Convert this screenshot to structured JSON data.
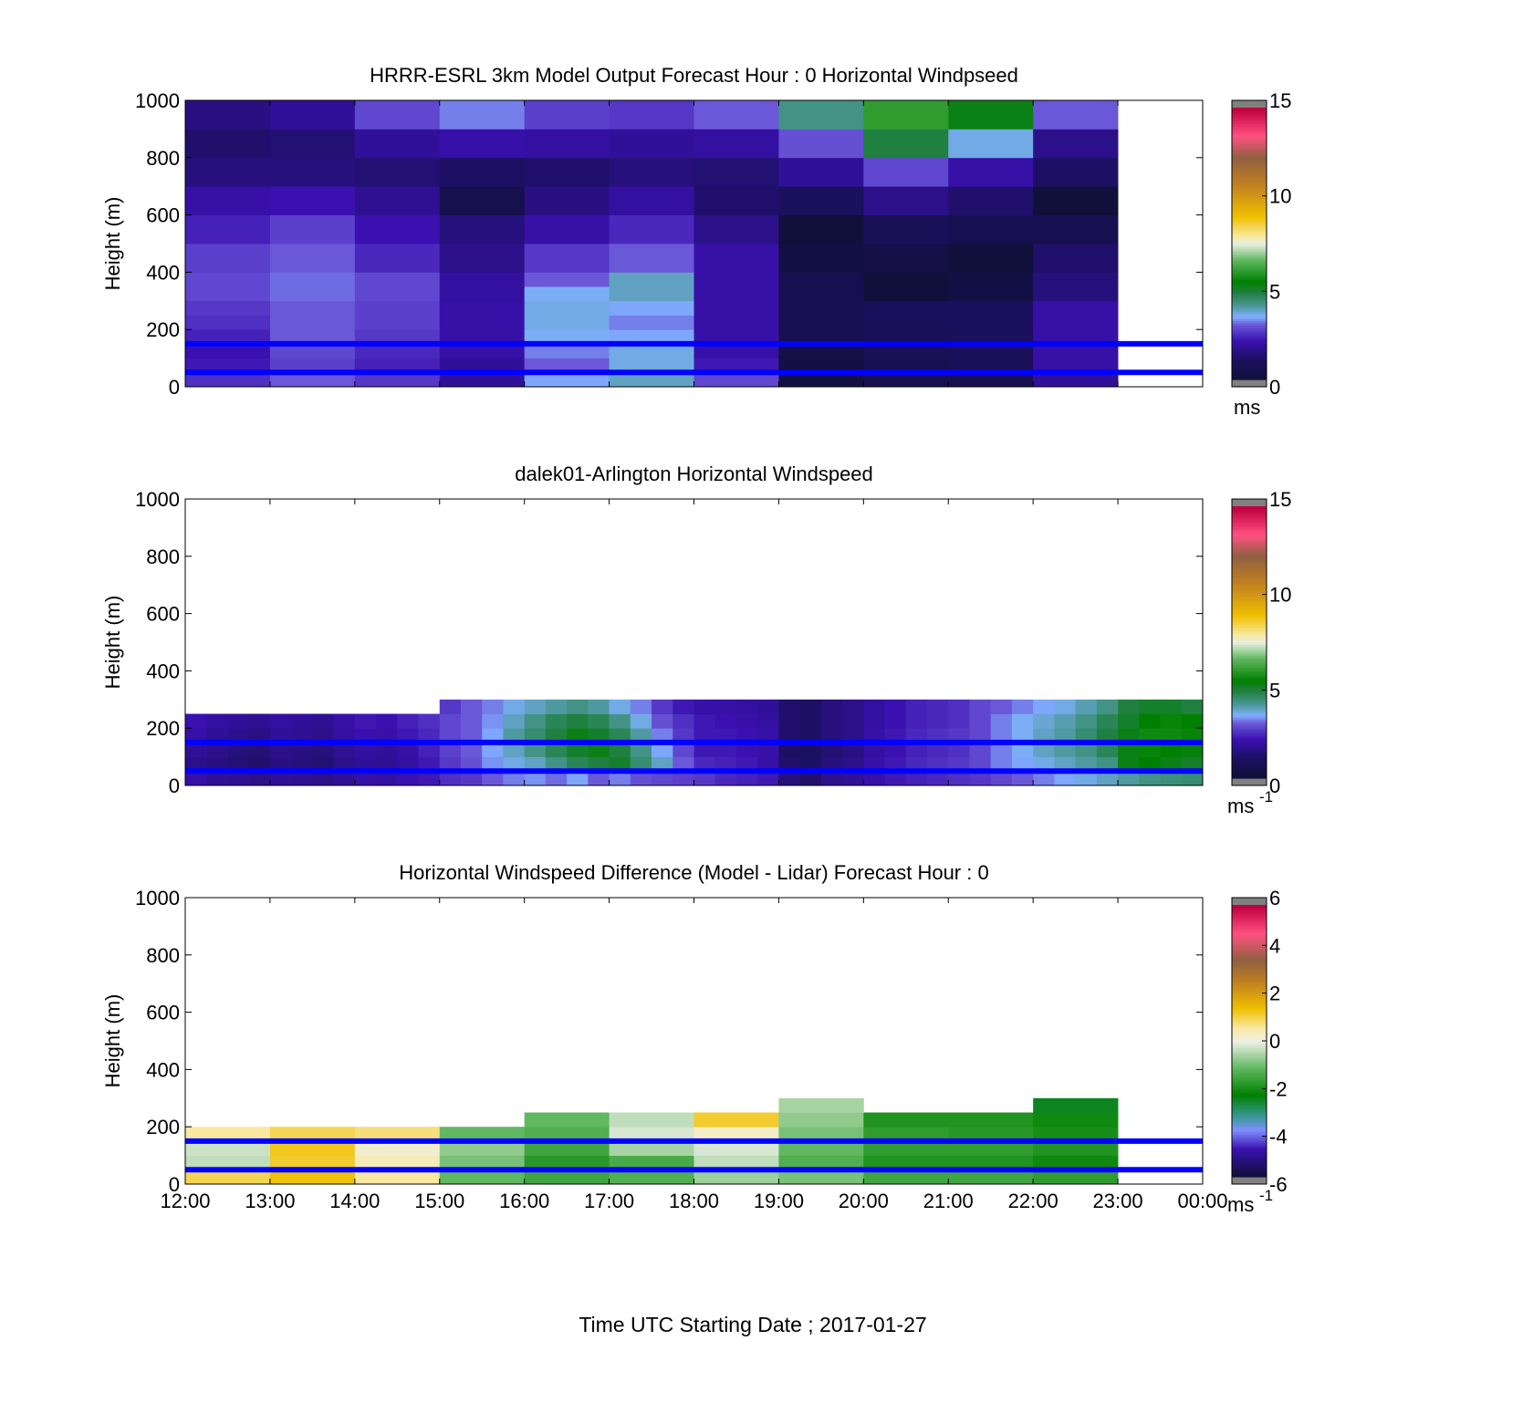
{
  "figure": {
    "x_tick_labels": [
      "12:00",
      "13:00",
      "14:00",
      "15:00",
      "16:00",
      "17:00",
      "18:00",
      "19:00",
      "20:00",
      "21:00",
      "22:00",
      "23:00",
      "00:00"
    ],
    "x_axis_label": "Time UTC  Starting Date ; 2017-01-27",
    "y_tick_labels": [
      "0",
      "200",
      "400",
      "600",
      "800",
      "1000"
    ],
    "reference_lines": {
      "heights_m": [
        50,
        150
      ],
      "color": "#0000ff"
    }
  },
  "chart_data": [
    {
      "type": "heatmap",
      "id": "model",
      "title": "HRRR-ESRL 3km Model Output   Forecast Hour : 0 Horizontal Windpseed",
      "ylabel": "Height (m)",
      "units_label": "ms",
      "units_superscript": "",
      "xlim": [
        12,
        24
      ],
      "ylim": [
        0,
        1000
      ],
      "colorbar": {
        "range": [
          0,
          15
        ],
        "ticks": [
          0,
          5,
          10,
          15
        ]
      },
      "columns_start_hour": [
        12,
        13,
        14,
        15,
        16,
        17,
        18,
        19,
        20,
        21,
        22
      ],
      "column_width_hours": 1,
      "heights_m": [
        25,
        75,
        125,
        175,
        225,
        275,
        325,
        375,
        450,
        550,
        650,
        750,
        850,
        950
      ],
      "row_height_m": [
        50,
        50,
        50,
        50,
        50,
        50,
        50,
        50,
        100,
        100,
        100,
        100,
        100,
        100
      ],
      "values": [
        [
          2.5,
          3.0,
          2.6,
          1.8,
          3.4,
          3.8,
          2.8,
          0.3,
          0.6,
          0.7,
          1.8
        ],
        [
          2.2,
          2.7,
          2.3,
          1.8,
          3.0,
          3.6,
          2.2,
          0.3,
          0.7,
          0.8,
          2.0
        ],
        [
          2.1,
          2.8,
          2.4,
          2.0,
          3.2,
          3.6,
          2.0,
          0.4,
          0.8,
          0.9,
          2.0
        ],
        [
          2.3,
          3.0,
          2.6,
          2.0,
          3.5,
          3.4,
          2.0,
          0.6,
          0.8,
          0.9,
          2.0
        ],
        [
          2.5,
          3.0,
          2.7,
          2.0,
          3.6,
          3.2,
          2.0,
          0.6,
          0.9,
          1.0,
          2.0
        ],
        [
          2.6,
          3.0,
          2.7,
          2.0,
          3.6,
          3.4,
          2.0,
          0.6,
          0.9,
          1.0,
          2.0
        ],
        [
          2.8,
          3.1,
          2.8,
          1.9,
          3.5,
          3.8,
          2.0,
          0.6,
          0.0,
          0.3,
          1.4
        ],
        [
          2.8,
          3.1,
          2.8,
          1.9,
          3.0,
          3.8,
          2.0,
          0.6,
          0.0,
          0.3,
          1.4
        ],
        [
          2.7,
          3.0,
          2.4,
          1.6,
          2.6,
          3.0,
          2.0,
          0.3,
          0.4,
          0.0,
          1.2
        ],
        [
          2.3,
          2.7,
          2.1,
          1.4,
          2.0,
          2.4,
          1.6,
          0.0,
          0.8,
          0.6,
          0.6
        ],
        [
          2.0,
          2.1,
          1.7,
          0.5,
          1.5,
          1.9,
          1.2,
          0.9,
          1.6,
          1.2,
          0.0
        ],
        [
          1.4,
          1.4,
          1.3,
          1.1,
          1.2,
          1.4,
          1.3,
          1.8,
          2.8,
          2.0,
          1.1
        ],
        [
          1.2,
          1.3,
          1.8,
          2.0,
          1.9,
          1.8,
          1.9,
          2.9,
          4.8,
          3.6,
          1.6
        ],
        [
          1.5,
          1.8,
          2.8,
          3.2,
          2.7,
          2.6,
          3.0,
          4.2,
          6.0,
          5.2,
          3.0
        ]
      ]
    },
    {
      "type": "heatmap",
      "id": "lidar",
      "title": "dalek01-Arlington  Horizontal Windspeed",
      "ylabel": "Height (m)",
      "units_label": "ms",
      "units_superscript": "-1",
      "xlim": [
        12,
        24
      ],
      "ylim": [
        0,
        1000
      ],
      "colorbar": {
        "range": [
          0,
          15
        ],
        "ticks": [
          0,
          5,
          10,
          15
        ]
      },
      "columns_start_hour": [
        12,
        12.25,
        12.5,
        12.75,
        13,
        13.25,
        13.5,
        13.75,
        14,
        14.25,
        14.5,
        14.75,
        15,
        15.25,
        15.5,
        15.75,
        16,
        16.25,
        16.5,
        16.75,
        17,
        17.25,
        17.5,
        17.75,
        18,
        18.25,
        18.5,
        18.75,
        19,
        19.25,
        19.5,
        19.75,
        20,
        20.25,
        20.5,
        20.75,
        21,
        21.25,
        21.5,
        21.75,
        22,
        22.25,
        22.5,
        22.75,
        23,
        23.25,
        23.5,
        23.75
      ],
      "column_width_hours": 0.25,
      "heights_m": [
        25,
        75,
        125,
        175,
        225,
        275
      ],
      "row_height_m": [
        50,
        50,
        50,
        50,
        50,
        50
      ],
      "values": [
        [
          2.0,
          1.8,
          1.7,
          1.6,
          1.8,
          1.7,
          1.6,
          1.8,
          2.0,
          1.9,
          2.1,
          2.2,
          2.5,
          2.6,
          3.0,
          3.2,
          3.3,
          3.1,
          3.4,
          3.0,
          3.2,
          2.9,
          2.8,
          2.7,
          2.6,
          2.4,
          2.3,
          2.2,
          1.4,
          1.2,
          1.6,
          1.8,
          2.0,
          2.2,
          2.3,
          2.4,
          2.5,
          2.6,
          2.8,
          3.0,
          3.2,
          3.4,
          3.6,
          3.8,
          4.0,
          4.2,
          4.3,
          4.4
        ],
        [
          1.6,
          1.5,
          1.3,
          1.2,
          1.5,
          1.4,
          1.3,
          1.6,
          1.8,
          1.7,
          1.9,
          2.2,
          2.6,
          2.9,
          3.3,
          3.6,
          3.8,
          4.2,
          4.6,
          4.8,
          5.0,
          4.4,
          3.8,
          3.0,
          2.4,
          2.3,
          2.2,
          2.0,
          1.2,
          1.1,
          1.4,
          1.6,
          2.0,
          2.2,
          2.4,
          2.5,
          2.6,
          2.8,
          3.2,
          3.4,
          3.6,
          3.8,
          4.0,
          4.2,
          5.2,
          5.4,
          5.2,
          5.0
        ],
        [
          1.8,
          1.6,
          1.4,
          1.3,
          1.6,
          1.5,
          1.4,
          1.7,
          1.9,
          1.8,
          2.0,
          2.3,
          2.7,
          3.0,
          3.4,
          3.8,
          4.2,
          4.6,
          5.0,
          5.2,
          4.8,
          4.2,
          3.4,
          2.8,
          2.2,
          2.2,
          2.1,
          2.0,
          1.1,
          1.0,
          1.3,
          1.5,
          1.9,
          2.1,
          2.3,
          2.4,
          2.5,
          2.8,
          3.2,
          3.5,
          3.8,
          4.0,
          4.2,
          4.6,
          5.2,
          5.5,
          5.4,
          5.3
        ],
        [
          2.0,
          1.8,
          1.6,
          1.5,
          1.8,
          1.7,
          1.6,
          1.9,
          2.1,
          2.0,
          2.2,
          2.4,
          2.8,
          3.0,
          3.4,
          4.0,
          4.4,
          4.8,
          5.2,
          5.0,
          4.6,
          4.0,
          3.2,
          2.6,
          2.2,
          2.2,
          2.1,
          2.0,
          1.2,
          1.1,
          1.4,
          1.6,
          2.0,
          2.2,
          2.4,
          2.5,
          2.6,
          2.8,
          3.2,
          3.5,
          3.8,
          4.0,
          4.4,
          4.8,
          5.2,
          5.6,
          5.6,
          5.5
        ],
        [
          2.1,
          1.9,
          1.8,
          1.7,
          1.9,
          1.8,
          1.7,
          2.0,
          2.2,
          2.1,
          2.3,
          2.5,
          2.8,
          3.0,
          3.3,
          3.8,
          4.2,
          4.6,
          4.8,
          4.6,
          4.2,
          3.6,
          2.9,
          2.5,
          2.2,
          2.1,
          2.0,
          1.9,
          1.2,
          1.1,
          1.4,
          1.6,
          1.9,
          2.1,
          2.3,
          2.4,
          2.5,
          2.8,
          3.2,
          3.5,
          3.7,
          3.9,
          4.2,
          4.6,
          5.0,
          5.4,
          5.5,
          5.4
        ],
        [
          null,
          null,
          null,
          null,
          null,
          null,
          null,
          null,
          null,
          null,
          null,
          null,
          2.6,
          3.0,
          3.2,
          3.6,
          3.8,
          4.0,
          4.2,
          4.0,
          3.6,
          3.2,
          2.6,
          2.2,
          2.0,
          2.0,
          1.9,
          1.8,
          1.2,
          1.1,
          1.4,
          1.6,
          1.9,
          2.1,
          2.3,
          2.4,
          2.5,
          2.8,
          3.0,
          3.2,
          3.4,
          3.6,
          3.9,
          4.2,
          4.8,
          5.0,
          5.0,
          4.8
        ]
      ]
    },
    {
      "type": "heatmap",
      "id": "difference",
      "title": "Horizontal Windspeed Difference (Model - Lidar) Forecast Hour : 0",
      "ylabel": "Height (m)",
      "units_label": "ms",
      "units_superscript": "-1",
      "xlim": [
        12,
        24
      ],
      "ylim": [
        0,
        1000
      ],
      "colorbar": {
        "range": [
          -6,
          6
        ],
        "ticks": [
          -6,
          -4,
          -2,
          0,
          2,
          4,
          6
        ]
      },
      "columns_start_hour": [
        12,
        13,
        14,
        15,
        16,
        17,
        18,
        19,
        20,
        21,
        22
      ],
      "column_width_hours": 1,
      "heights_m": [
        25,
        75,
        125,
        175,
        225,
        275
      ],
      "row_height_m": [
        50,
        50,
        50,
        50,
        50,
        50
      ],
      "values": [
        [
          1.0,
          1.4,
          0.6,
          -1.2,
          -1.6,
          -1.4,
          -0.7,
          -1.0,
          -1.6,
          -1.6,
          -1.8
        ],
        [
          -0.4,
          1.2,
          0.4,
          -1.0,
          -1.9,
          -1.5,
          -0.4,
          -1.4,
          -2.0,
          -2.0,
          -2.2
        ],
        [
          -0.3,
          1.3,
          0.2,
          -0.8,
          -1.6,
          -0.6,
          -0.2,
          -1.2,
          -1.8,
          -1.8,
          -2.0
        ],
        [
          0.6,
          1.0,
          0.8,
          -1.2,
          -1.4,
          -0.2,
          0.3,
          -1.0,
          -1.8,
          -1.9,
          -2.1
        ],
        [
          null,
          null,
          null,
          null,
          -1.2,
          -0.4,
          1.2,
          -0.8,
          -2.0,
          -2.0,
          -2.2
        ],
        [
          null,
          null,
          null,
          null,
          null,
          null,
          null,
          -0.6,
          null,
          null,
          -2.6
        ]
      ]
    }
  ]
}
